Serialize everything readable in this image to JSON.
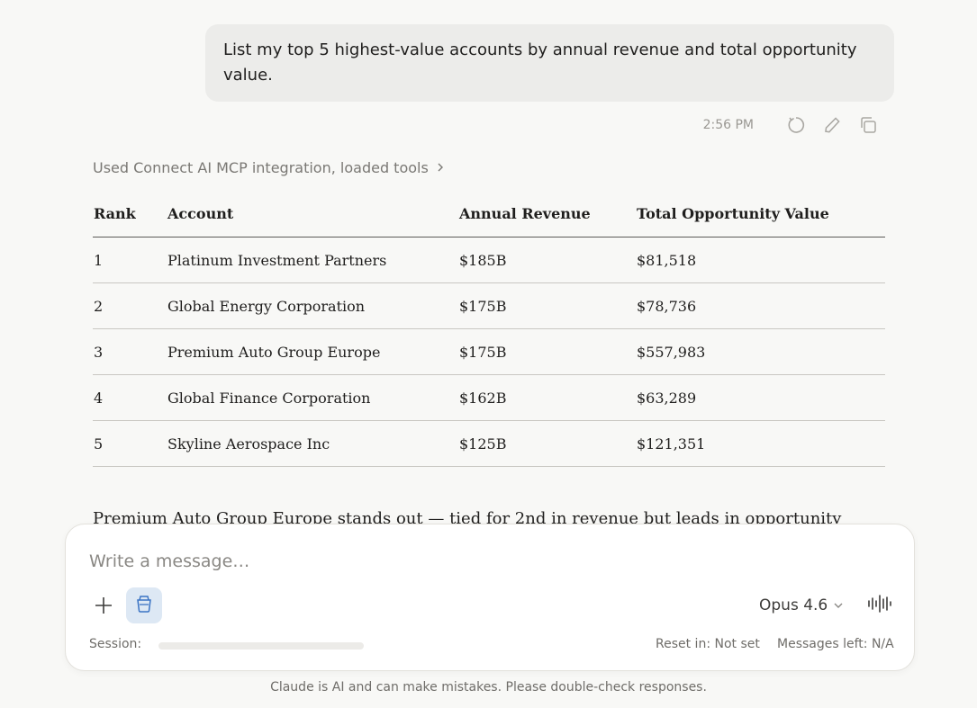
{
  "user_message": {
    "text": "List my top 5 highest-value accounts by annual revenue and total opportunity value."
  },
  "message_meta": {
    "timestamp": "2:56 PM",
    "icons": [
      "retry-icon",
      "edit-icon",
      "copy-icon"
    ]
  },
  "tools_line": {
    "label": "Used Connect AI MCP integration, loaded tools",
    "icon": "chevron-right-icon"
  },
  "table": {
    "headers": [
      "Rank",
      "Account",
      "Annual Revenue",
      "Total Opportunity Value"
    ],
    "rows": [
      [
        "1",
        "Platinum Investment Partners",
        "$185B",
        "$81,518"
      ],
      [
        "2",
        "Global Energy Corporation",
        "$175B",
        "$78,736"
      ],
      [
        "3",
        "Premium Auto Group Europe",
        "$175B",
        "$557,983"
      ],
      [
        "4",
        "Global Finance Corporation",
        "$162B",
        "$63,289"
      ],
      [
        "5",
        "Skyline Aerospace Inc",
        "$125B",
        "$121,351"
      ]
    ]
  },
  "summary_text": "Premium Auto Group Europe stands out — tied for 2nd in revenue but leads in opportunity",
  "composer": {
    "placeholder": "Write a message…",
    "model_label": "Opus 4.6",
    "session_label": "Session:",
    "session_progress": 0,
    "reset_text": "Reset in: Not set",
    "messages_left": "Messages left: N/A",
    "icons": [
      "plus-icon",
      "tool-icon",
      "chevron-down-icon",
      "voice-icon"
    ]
  },
  "disclaimer": "Claude is AI and can make mistakes. Please double-check responses."
}
